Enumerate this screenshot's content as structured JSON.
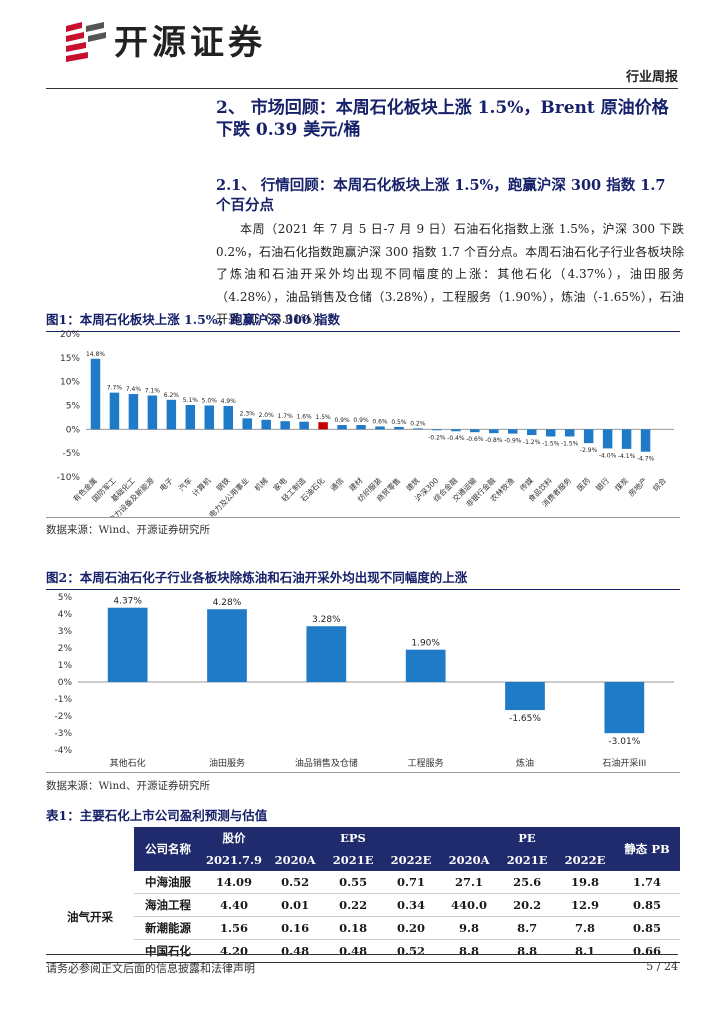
{
  "header": {
    "company": "开源证券",
    "tag": "行业周报",
    "brand_color": "#c8102e"
  },
  "section": {
    "heading": "2、 市场回顾：本周石化板块上涨 1.5%，Brent 原油价格下跌 0.39 美元/桶",
    "subheading": "2.1、 行情回顾：本周石化板块上涨 1.5%，跑赢沪深 300 指数 1.7 个百分点",
    "paragraph": "本周（2021 年 7 月 5 日-7 月 9 日）石油石化指数上涨 1.5%，沪深 300 下跌 0.2%，石油石化指数跑赢沪深 300 指数 1.7 个百分点。本周石油石化子行业各板块除了炼油和石油开采外均出现不同幅度的上涨：其他石化（4.37%），油田服务（4.28%），油品销售及仓储（3.28%），工程服务（1.90%），炼油（-1.65%），石油开采 III（-3.01%）。"
  },
  "figure1": {
    "title": "图1：本周石化板块上涨 1.5%，跑赢沪深 300 指数",
    "source": "数据来源：Wind、开源证券研究所"
  },
  "figure2": {
    "title": "图2：本周石油石化子行业各板块除炼油和石油开采外均出现不同幅度的上涨",
    "source": "数据来源：Wind、开源证券研究所"
  },
  "chart_data": [
    {
      "type": "bar",
      "categories": [
        "有色金属",
        "国防军工",
        "基础化工",
        "电力设备及新能源",
        "电子",
        "汽车",
        "计算机",
        "钢铁",
        "电力及公用事业",
        "机械",
        "家电",
        "轻工制造",
        "石油石化",
        "通信",
        "建材",
        "纺织服装",
        "商贸零售",
        "建筑",
        "沪深300",
        "综合金融",
        "交通运输",
        "非银行金融",
        "农林牧渔",
        "传媒",
        "食品饮料",
        "消费者服务",
        "医药",
        "银行",
        "煤炭",
        "房地产",
        "综合"
      ],
      "values": [
        14.8,
        7.7,
        7.4,
        7.1,
        6.2,
        5.1,
        5.0,
        4.9,
        2.3,
        2.0,
        1.7,
        1.6,
        1.5,
        0.9,
        0.9,
        0.6,
        0.5,
        0.2,
        -0.2,
        -0.4,
        -0.6,
        -0.8,
        -0.9,
        -1.2,
        -1.5,
        -1.5,
        -2.9,
        -4.0,
        -4.1,
        -4.7,
        0.0
      ],
      "labels": [
        "14.8%",
        "7.7%",
        "7.4%",
        "7.1%",
        "6.2%",
        "5.1%",
        "5.0%",
        "4.9%",
        "2.3%",
        "2.0%",
        "1.7%",
        "1.6%",
        "1.5%",
        "0.9%",
        "0.9%",
        "0.6%",
        "0.5%",
        "0.2%",
        "-0.2%",
        "-0.4%",
        "-0.6%",
        "-0.8%",
        "-0.9%",
        "-1.2%",
        "-1.5%",
        "-1.5%",
        "-2.9%",
        "-4.0%",
        "-4.1%",
        "-4.7%",
        ""
      ],
      "highlight_category": "石油石化",
      "highlight_color": "#c00000",
      "bar_color": "#1f7ac8",
      "ylim": [
        -10,
        20
      ],
      "yticks": [
        "20%",
        "15%",
        "10%",
        "5%",
        "0%",
        "-5%",
        "-10%"
      ],
      "ytick_values": [
        20,
        15,
        10,
        5,
        0,
        -5,
        -10
      ]
    },
    {
      "type": "bar",
      "categories": [
        "其他石化",
        "油田服务",
        "油品销售及仓储",
        "工程服务",
        "炼油",
        "石油开采III"
      ],
      "values": [
        4.37,
        4.28,
        3.28,
        1.9,
        -1.65,
        -3.01
      ],
      "labels": [
        "4.37%",
        "4.28%",
        "3.28%",
        "1.90%",
        "-1.65%",
        "-3.01%"
      ],
      "bar_color": "#1f7ac8",
      "ylim": [
        -4,
        5
      ],
      "yticks": [
        "5%",
        "4%",
        "3%",
        "2%",
        "1%",
        "0%",
        "-1%",
        "-2%",
        "-3%",
        "-4%"
      ],
      "ytick_values": [
        5,
        4,
        3,
        2,
        1,
        0,
        -1,
        -2,
        -3,
        -4
      ]
    }
  ],
  "table": {
    "title": "表1：主要石化上市公司盈利预测与估值",
    "headers": {
      "company": "公司名称",
      "price": "股价",
      "price_date": "2021.7.9",
      "eps": "EPS",
      "pe": "PE",
      "pb": "静态 PB",
      "years": [
        "2020A",
        "2021E",
        "2022E"
      ]
    },
    "category": "油气开采",
    "rows": [
      {
        "name": "中海油服",
        "price": "14.09",
        "eps": [
          "0.52",
          "0.55",
          "0.71"
        ],
        "pe": [
          "27.1",
          "25.6",
          "19.8"
        ],
        "pb": "1.74"
      },
      {
        "name": "海油工程",
        "price": "4.40",
        "eps": [
          "0.01",
          "0.22",
          "0.34"
        ],
        "pe": [
          "440.0",
          "20.2",
          "12.9"
        ],
        "pb": "0.85"
      },
      {
        "name": "新潮能源",
        "price": "1.56",
        "eps": [
          "0.16",
          "0.18",
          "0.20"
        ],
        "pe": [
          "9.8",
          "8.7",
          "7.8"
        ],
        "pb": "0.85"
      },
      {
        "name": "中国石化",
        "price": "4.20",
        "eps": [
          "0.48",
          "0.48",
          "0.52"
        ],
        "pe": [
          "8.8",
          "8.8",
          "8.1"
        ],
        "pb": "0.66"
      }
    ]
  },
  "footer": {
    "disclaimer": "请务必参阅正文后面的信息披露和法律声明",
    "page": "5 / 24"
  }
}
